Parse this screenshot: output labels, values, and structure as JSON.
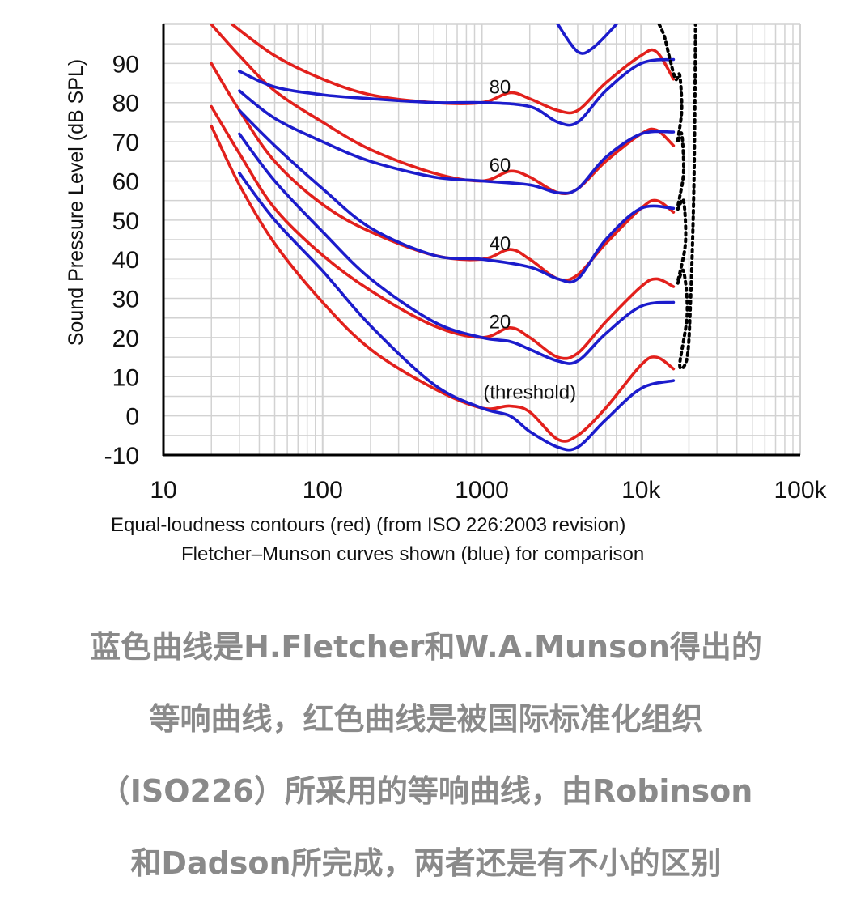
{
  "chart_data": {
    "type": "line",
    "title": "",
    "ylabel": "Sound Pressure Level (dB SPL)",
    "xlabel": "",
    "x_scale": "log",
    "xlim": [
      10,
      100000
    ],
    "ylim": [
      -10,
      100
    ],
    "x_ticks": [
      {
        "value": 10,
        "label": "10"
      },
      {
        "value": 100,
        "label": "100"
      },
      {
        "value": 1000,
        "label": "1000"
      },
      {
        "value": 10000,
        "label": "10k"
      },
      {
        "value": 100000,
        "label": "100k"
      }
    ],
    "y_ticks": [
      -10,
      0,
      10,
      20,
      30,
      40,
      50,
      60,
      70,
      80,
      90
    ],
    "grid": true,
    "captions": [
      "Equal-loudness contours (red) (from ISO 226:2003 revision)",
      "Fletcher–Munson curves shown (blue) for comparison"
    ],
    "contour_labels": [
      {
        "text": "80",
        "x": 1300,
        "y": 84
      },
      {
        "text": "60",
        "x": 1300,
        "y": 64
      },
      {
        "text": "40",
        "x": 1300,
        "y": 44
      },
      {
        "text": "20",
        "x": 1300,
        "y": 24
      },
      {
        "text": "(threshold)",
        "x": 2000,
        "y": 6
      }
    ],
    "series": [
      {
        "color": "red",
        "points": [
          [
            27,
            100
          ],
          [
            50,
            92
          ],
          [
            100,
            86
          ],
          [
            200,
            82
          ],
          [
            500,
            80
          ],
          [
            1000,
            80
          ],
          [
            1500,
            82.5
          ],
          [
            2000,
            81
          ],
          [
            3000,
            78
          ],
          [
            4000,
            78
          ],
          [
            6000,
            85
          ],
          [
            10000,
            92
          ],
          [
            12500,
            93
          ],
          [
            16000,
            86
          ]
        ]
      },
      {
        "color": "red",
        "points": [
          [
            20,
            100
          ],
          [
            30,
            92
          ],
          [
            50,
            83
          ],
          [
            100,
            75
          ],
          [
            200,
            68
          ],
          [
            500,
            62
          ],
          [
            1000,
            60
          ],
          [
            1500,
            62.5
          ],
          [
            2000,
            61
          ],
          [
            3000,
            57
          ],
          [
            4000,
            58
          ],
          [
            6000,
            65
          ],
          [
            10000,
            72
          ],
          [
            12500,
            73
          ],
          [
            16000,
            69
          ]
        ]
      },
      {
        "color": "red",
        "points": [
          [
            20,
            90
          ],
          [
            30,
            78
          ],
          [
            50,
            65
          ],
          [
            100,
            54
          ],
          [
            200,
            47
          ],
          [
            500,
            41
          ],
          [
            1000,
            40
          ],
          [
            1500,
            42.5
          ],
          [
            2000,
            40
          ],
          [
            3000,
            35
          ],
          [
            4000,
            36
          ],
          [
            6000,
            44
          ],
          [
            10000,
            53
          ],
          [
            12500,
            55
          ],
          [
            16000,
            52
          ]
        ]
      },
      {
        "color": "red",
        "points": [
          [
            20,
            79
          ],
          [
            30,
            67
          ],
          [
            50,
            53
          ],
          [
            100,
            41
          ],
          [
            200,
            32
          ],
          [
            500,
            23
          ],
          [
            1000,
            20
          ],
          [
            1500,
            22.5
          ],
          [
            2000,
            20
          ],
          [
            3000,
            15
          ],
          [
            4000,
            16
          ],
          [
            6000,
            24
          ],
          [
            10000,
            33
          ],
          [
            12500,
            35
          ],
          [
            16000,
            33
          ]
        ]
      },
      {
        "color": "red",
        "points": [
          [
            20,
            74
          ],
          [
            30,
            59
          ],
          [
            50,
            44
          ],
          [
            100,
            29
          ],
          [
            200,
            17
          ],
          [
            500,
            7
          ],
          [
            1000,
            2
          ],
          [
            1500,
            2.5
          ],
          [
            2000,
            1
          ],
          [
            3000,
            -6
          ],
          [
            4000,
            -5
          ],
          [
            6000,
            2
          ],
          [
            10000,
            13
          ],
          [
            12500,
            15
          ],
          [
            16000,
            12
          ]
        ]
      },
      {
        "color": "blue",
        "points": [
          [
            3000,
            100
          ],
          [
            4000,
            93
          ],
          [
            5000,
            94
          ],
          [
            7000,
            100
          ]
        ]
      },
      {
        "color": "blue",
        "points": [
          [
            30,
            88
          ],
          [
            50,
            84
          ],
          [
            100,
            82
          ],
          [
            200,
            81
          ],
          [
            500,
            80
          ],
          [
            1000,
            80
          ],
          [
            2000,
            79
          ],
          [
            3000,
            75
          ],
          [
            4000,
            75
          ],
          [
            6000,
            83
          ],
          [
            10000,
            90
          ],
          [
            16000,
            91
          ]
        ]
      },
      {
        "color": "blue",
        "points": [
          [
            30,
            83
          ],
          [
            50,
            76
          ],
          [
            100,
            70
          ],
          [
            200,
            65
          ],
          [
            500,
            61
          ],
          [
            1000,
            60
          ],
          [
            2000,
            59
          ],
          [
            3000,
            57
          ],
          [
            4000,
            58
          ],
          [
            6000,
            66
          ],
          [
            10000,
            72
          ],
          [
            16000,
            72.5
          ]
        ]
      },
      {
        "color": "blue",
        "points": [
          [
            30,
            78
          ],
          [
            50,
            69
          ],
          [
            100,
            58
          ],
          [
            200,
            48
          ],
          [
            500,
            41
          ],
          [
            1000,
            40
          ],
          [
            2000,
            38
          ],
          [
            3000,
            35
          ],
          [
            4000,
            35
          ],
          [
            6000,
            45
          ],
          [
            10000,
            53
          ],
          [
            16000,
            53
          ]
        ]
      },
      {
        "color": "blue",
        "points": [
          [
            30,
            72
          ],
          [
            50,
            60
          ],
          [
            100,
            47
          ],
          [
            200,
            35
          ],
          [
            500,
            24
          ],
          [
            1000,
            20
          ],
          [
            1500,
            19
          ],
          [
            2000,
            17
          ],
          [
            3000,
            14
          ],
          [
            4000,
            14
          ],
          [
            6000,
            21
          ],
          [
            10000,
            28
          ],
          [
            16000,
            29
          ]
        ]
      },
      {
        "color": "blue",
        "points": [
          [
            30,
            62
          ],
          [
            50,
            50
          ],
          [
            100,
            37
          ],
          [
            200,
            23
          ],
          [
            500,
            8
          ],
          [
            1000,
            2
          ],
          [
            1500,
            0
          ],
          [
            2000,
            -4
          ],
          [
            3000,
            -8
          ],
          [
            4000,
            -8
          ],
          [
            6000,
            -1
          ],
          [
            10000,
            7
          ],
          [
            16000,
            9
          ]
        ]
      }
    ],
    "threshold_line": {
      "color": "black",
      "style": "dotted",
      "points": [
        [
          13000,
          100
        ],
        [
          14000,
          97
        ],
        [
          15000,
          92
        ],
        [
          16500,
          86
        ],
        [
          17500,
          87
        ],
        [
          18000,
          78
        ],
        [
          17000,
          70
        ],
        [
          18000,
          72
        ],
        [
          18500,
          62
        ],
        [
          17000,
          53
        ],
        [
          18500,
          55
        ],
        [
          19000,
          44
        ],
        [
          17000,
          34
        ],
        [
          18500,
          37
        ],
        [
          19500,
          26
        ],
        [
          17500,
          13
        ],
        [
          19500,
          15
        ],
        [
          20500,
          30
        ],
        [
          21500,
          60
        ],
        [
          22000,
          100
        ]
      ]
    }
  },
  "description": {
    "lines": [
      "蓝色曲线是H.Fletcher和W.A.Munson得出的",
      "等响曲线，红色曲线是被国际标准化组织",
      "（ISO226）所采用的等响曲线，由Robinson",
      "和Dadson所完成，两者还是有不小的区别"
    ]
  }
}
